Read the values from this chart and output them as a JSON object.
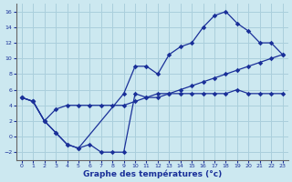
{
  "title": "Graphe des températures (°c)",
  "background_color": "#cce8f0",
  "grid_color": "#aacfdc",
  "line_color": "#1a3099",
  "xlim": [
    -0.5,
    23.5
  ],
  "ylim": [
    -3,
    17
  ],
  "xticks": [
    0,
    1,
    2,
    3,
    4,
    5,
    6,
    7,
    8,
    9,
    10,
    11,
    12,
    13,
    14,
    15,
    16,
    17,
    18,
    19,
    20,
    21,
    22,
    23
  ],
  "yticks": [
    -2,
    0,
    2,
    4,
    6,
    8,
    10,
    12,
    14,
    16
  ],
  "line1_x": [
    0,
    1,
    2,
    3,
    4,
    5,
    6,
    7,
    8,
    9,
    10,
    11,
    12,
    13,
    14,
    15,
    16,
    17,
    18,
    19,
    20,
    21,
    22,
    23
  ],
  "line1_y": [
    5,
    4.5,
    2,
    3.5,
    4,
    4,
    4,
    4,
    4,
    4,
    4.5,
    5,
    5,
    5.5,
    6,
    6.5,
    7,
    7.5,
    8,
    8.5,
    9,
    9.5,
    10,
    10.5
  ],
  "line2_x": [
    0,
    1,
    2,
    3,
    4,
    5,
    9,
    10,
    11,
    12,
    13,
    14,
    15,
    16,
    17,
    18,
    19,
    20,
    21,
    22,
    23
  ],
  "line2_y": [
    5,
    4.5,
    2,
    0.5,
    -1,
    -1.5,
    5.5,
    9,
    9,
    8,
    10.5,
    11.5,
    12,
    14,
    15.5,
    16,
    14.5,
    13.5,
    12,
    12,
    10.5
  ],
  "line3_x": [
    0,
    1,
    2,
    3,
    4,
    5,
    6,
    7,
    8,
    9,
    10,
    11,
    12,
    13,
    14,
    15,
    16,
    17,
    18,
    19,
    20,
    21,
    22,
    23
  ],
  "line3_y": [
    5,
    4.5,
    2,
    0.5,
    -1,
    -1.5,
    -1,
    -2,
    -2,
    -2,
    5.5,
    5,
    5.5,
    5.5,
    5.5,
    5.5,
    5.5,
    5.5,
    5.5,
    6,
    5.5,
    5.5,
    5.5,
    5.5
  ]
}
